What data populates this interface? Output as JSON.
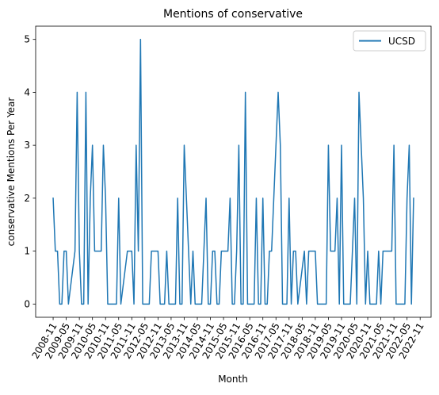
{
  "chart_data": {
    "type": "line",
    "title": "Mentions of conservative",
    "xlabel": "Month",
    "ylabel": "conservative Mentions Per Year",
    "ylim": [
      -0.25,
      5.25
    ],
    "yticks": [
      0,
      1,
      2,
      3,
      4,
      5
    ],
    "xtick_labels": [
      "2008-11",
      "2009-05",
      "2009-11",
      "2010-05",
      "2010-11",
      "2011-05",
      "2011-11",
      "2012-05",
      "2012-11",
      "2013-05",
      "2013-11",
      "2014-05",
      "2014-11",
      "2015-05",
      "2015-11",
      "2016-05",
      "2016-11",
      "2017-05",
      "2017-11",
      "2018-05",
      "2018-11",
      "2019-05",
      "2019-11",
      "2020-05",
      "2020-11",
      "2021-05",
      "2021-11",
      "2022-05",
      "2022-11"
    ],
    "x_unit": "month index from 2008-11",
    "legend": {
      "position": "top-right",
      "entries": [
        "UCSD"
      ]
    },
    "grid": false,
    "series": [
      {
        "name": "UCSD",
        "color": "#1f77b4",
        "points": [
          [
            0,
            2
          ],
          [
            1,
            1
          ],
          [
            2,
            1
          ],
          [
            3,
            0
          ],
          [
            4,
            0
          ],
          [
            5,
            1
          ],
          [
            6,
            1
          ],
          [
            7,
            0
          ],
          [
            10,
            1
          ],
          [
            11,
            4
          ],
          [
            12,
            1
          ],
          [
            13,
            0
          ],
          [
            14,
            0
          ],
          [
            15,
            4
          ],
          [
            16,
            0
          ],
          [
            17,
            2
          ],
          [
            18,
            3
          ],
          [
            19,
            1
          ],
          [
            20,
            1
          ],
          [
            21,
            1
          ],
          [
            22,
            1
          ],
          [
            23,
            3
          ],
          [
            24,
            2
          ],
          [
            25,
            0
          ],
          [
            26,
            0
          ],
          [
            27,
            0
          ],
          [
            28,
            0
          ],
          [
            29,
            0
          ],
          [
            30,
            2
          ],
          [
            31,
            0
          ],
          [
            34,
            1
          ],
          [
            35,
            1
          ],
          [
            36,
            1
          ],
          [
            37,
            0
          ],
          [
            38,
            3
          ],
          [
            39,
            1
          ],
          [
            40,
            5
          ],
          [
            41,
            0
          ],
          [
            42,
            0
          ],
          [
            43,
            0
          ],
          [
            44,
            0
          ],
          [
            45,
            1
          ],
          [
            46,
            1
          ],
          [
            47,
            1
          ],
          [
            48,
            1
          ],
          [
            49,
            0
          ],
          [
            50,
            0
          ],
          [
            51,
            0
          ],
          [
            52,
            1
          ],
          [
            53,
            0
          ],
          [
            54,
            0
          ],
          [
            55,
            0
          ],
          [
            56,
            0
          ],
          [
            57,
            2
          ],
          [
            58,
            0
          ],
          [
            59,
            0
          ],
          [
            60,
            3
          ],
          [
            61,
            2
          ],
          [
            62,
            1
          ],
          [
            63,
            0
          ],
          [
            64,
            1
          ],
          [
            65,
            0
          ],
          [
            66,
            0
          ],
          [
            67,
            0
          ],
          [
            68,
            0
          ],
          [
            69,
            1
          ],
          [
            70,
            2
          ],
          [
            71,
            0
          ],
          [
            72,
            0
          ],
          [
            73,
            1
          ],
          [
            74,
            1
          ],
          [
            75,
            0
          ],
          [
            76,
            0
          ],
          [
            77,
            1
          ],
          [
            78,
            1
          ],
          [
            79,
            1
          ],
          [
            80,
            1
          ],
          [
            81,
            2
          ],
          [
            82,
            0
          ],
          [
            83,
            0
          ],
          [
            84,
            1
          ],
          [
            85,
            3
          ],
          [
            86,
            0
          ],
          [
            87,
            0
          ],
          [
            88,
            4
          ],
          [
            89,
            0
          ],
          [
            90,
            0
          ],
          [
            91,
            0
          ],
          [
            92,
            0
          ],
          [
            93,
            2
          ],
          [
            94,
            0
          ],
          [
            95,
            0
          ],
          [
            96,
            2
          ],
          [
            97,
            0
          ],
          [
            98,
            0
          ],
          [
            99,
            1
          ],
          [
            100,
            1
          ],
          [
            103,
            4
          ],
          [
            104,
            3
          ],
          [
            105,
            0
          ],
          [
            106,
            0
          ],
          [
            107,
            0
          ],
          [
            108,
            2
          ],
          [
            109,
            0
          ],
          [
            110,
            1
          ],
          [
            111,
            1
          ],
          [
            112,
            0
          ],
          [
            115,
            1
          ],
          [
            116,
            0
          ],
          [
            117,
            1
          ],
          [
            118,
            1
          ],
          [
            119,
            1
          ],
          [
            120,
            1
          ],
          [
            121,
            0
          ],
          [
            122,
            0
          ],
          [
            123,
            0
          ],
          [
            124,
            0
          ],
          [
            125,
            0
          ],
          [
            126,
            3
          ],
          [
            127,
            1
          ],
          [
            128,
            1
          ],
          [
            129,
            1
          ],
          [
            130,
            2
          ],
          [
            131,
            0
          ],
          [
            132,
            3
          ],
          [
            133,
            0
          ],
          [
            134,
            0
          ],
          [
            135,
            0
          ],
          [
            136,
            0
          ],
          [
            138,
            2
          ],
          [
            139,
            0
          ],
          [
            140,
            4
          ],
          [
            141,
            3
          ],
          [
            142,
            2
          ],
          [
            143,
            0
          ],
          [
            144,
            1
          ],
          [
            145,
            0
          ],
          [
            146,
            0
          ],
          [
            147,
            0
          ],
          [
            148,
            0
          ],
          [
            149,
            1
          ],
          [
            150,
            0
          ],
          [
            151,
            1
          ],
          [
            152,
            1
          ],
          [
            153,
            1
          ],
          [
            154,
            1
          ],
          [
            155,
            1
          ],
          [
            156,
            3
          ],
          [
            157,
            0
          ],
          [
            158,
            0
          ],
          [
            159,
            0
          ],
          [
            160,
            0
          ],
          [
            161,
            0
          ],
          [
            162,
            2
          ],
          [
            163,
            3
          ],
          [
            164,
            0
          ],
          [
            165,
            2
          ]
        ]
      }
    ]
  }
}
